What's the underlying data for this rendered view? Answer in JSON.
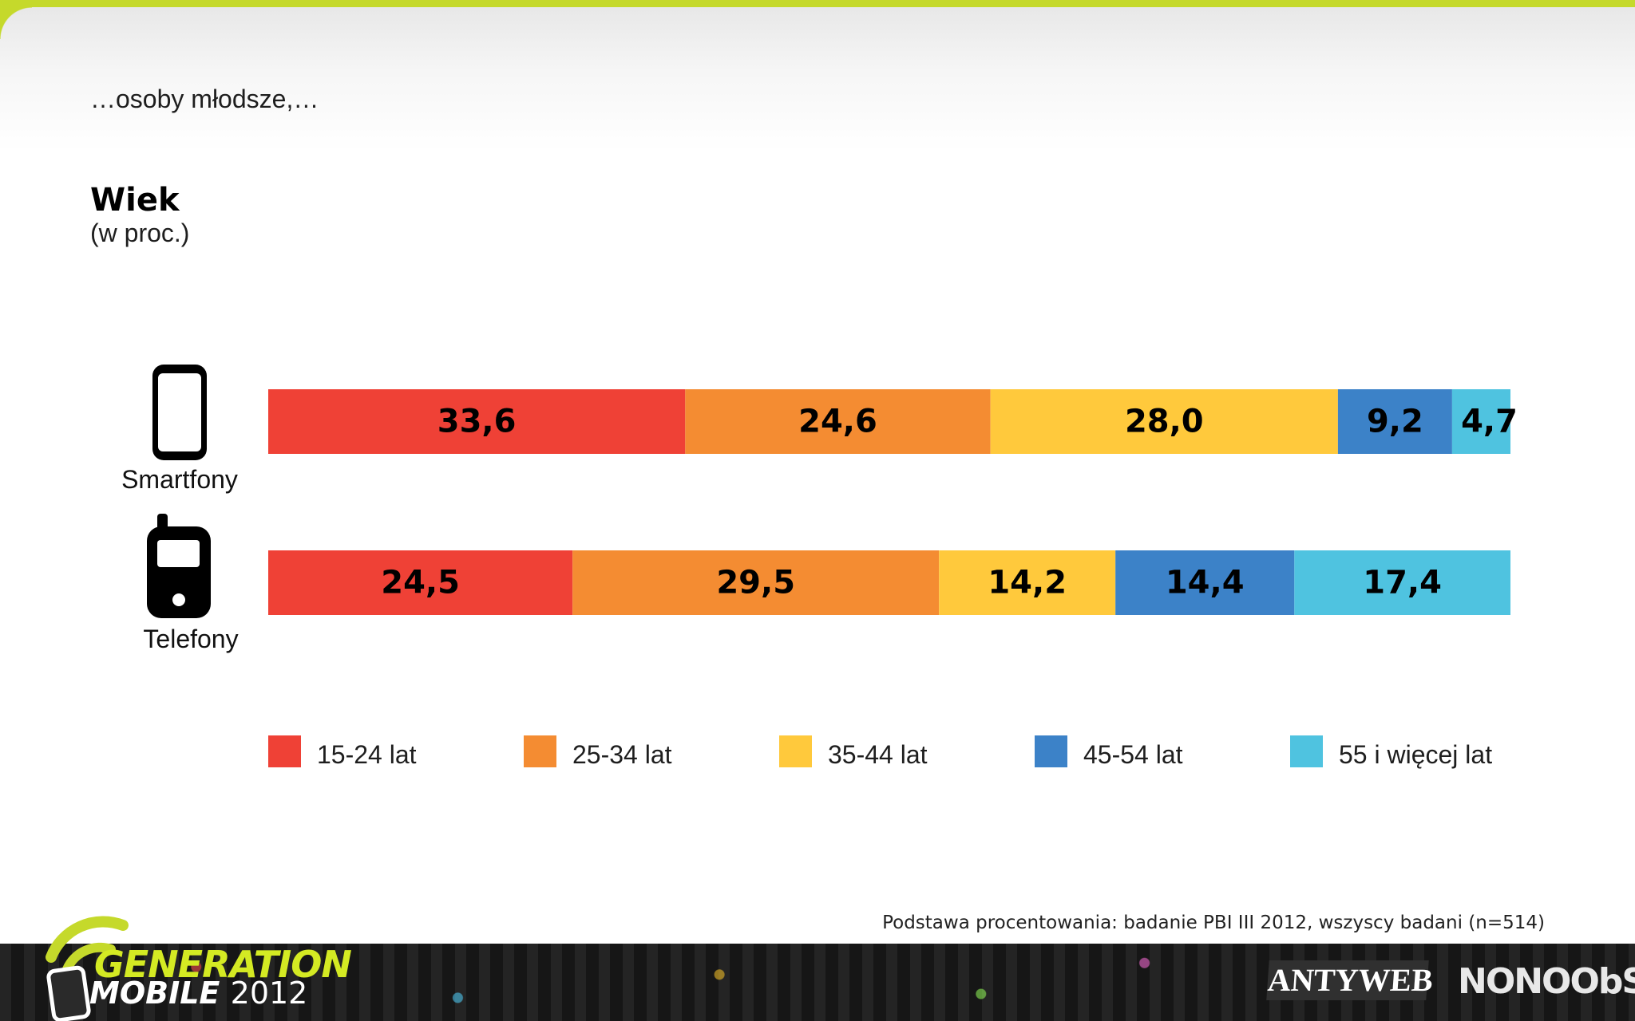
{
  "slide": {
    "subtitle": "…osoby młodsze,…"
  },
  "chart_data": {
    "type": "bar",
    "orientation": "horizontal",
    "stacked": true,
    "title": "Wiek",
    "unit_label": "(w proc.)",
    "categories": [
      "Smartfony",
      "Telefony"
    ],
    "category_icons": [
      "smartphone-icon",
      "feature-phone-icon"
    ],
    "series": [
      {
        "name": "15-24 lat",
        "color": "#ef4136",
        "values": [
          33.6,
          24.5
        ],
        "labels": [
          "33,6",
          "24,5"
        ]
      },
      {
        "name": "25-34 lat",
        "color": "#f48c32",
        "values": [
          24.6,
          29.5
        ],
        "labels": [
          "24,6",
          "29,5"
        ]
      },
      {
        "name": "35-44 lat",
        "color": "#ffc93c",
        "values": [
          28.0,
          14.2
        ],
        "labels": [
          "28,0",
          "14,2"
        ]
      },
      {
        "name": "45-54 lat",
        "color": "#3c82c8",
        "values": [
          9.2,
          14.4
        ],
        "labels": [
          "9,2",
          "14,4"
        ]
      },
      {
        "name": "55 i więcej lat",
        "color": "#4fc3e0",
        "values": [
          4.7,
          17.4
        ],
        "labels": [
          "4,7",
          "17,4"
        ]
      }
    ],
    "xlim": [
      0,
      100
    ],
    "grid": false,
    "legend": "bottom"
  },
  "footer": {
    "note": "Podstawa procentowania: badanie PBI III 2012, wszyscy badani (n=514)",
    "brand_line1": "GENERATION",
    "brand_line2": "MOBILE",
    "brand_year": "2012",
    "partner_1": "ANTYWEB",
    "partner_2": "NONOObS",
    "accent_color": "#c5d92b"
  }
}
